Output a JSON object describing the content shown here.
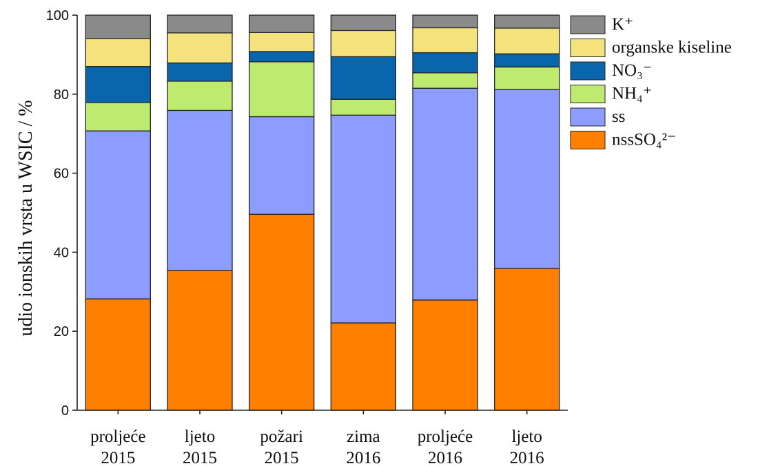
{
  "chart_data": {
    "type": "bar",
    "stacked": true,
    "ylabel": "udio ionskih vrsta u WSIC / %",
    "ylim": [
      0,
      100
    ],
    "yticks": [
      0,
      20,
      40,
      60,
      80,
      100
    ],
    "grid": false,
    "legend_position": "top-right",
    "categories": [
      [
        "proljeće",
        "2015"
      ],
      [
        "ljeto",
        "2015"
      ],
      [
        "požari",
        "2015"
      ],
      [
        "zima",
        "2016"
      ],
      [
        "proljeće",
        "2016"
      ],
      [
        "ljeto",
        "2016"
      ]
    ],
    "series": [
      {
        "name": "nssSO₄²⁻",
        "key": "nssso4",
        "color": "#ff8000",
        "values": [
          28.2,
          35.4,
          49.6,
          22.1,
          27.9,
          35.9
        ]
      },
      {
        "name": "ss",
        "key": "ss",
        "color": "#8c9cff",
        "values": [
          42.5,
          40.5,
          24.7,
          52.6,
          53.6,
          45.3
        ]
      },
      {
        "name": "NH₄⁺",
        "key": "nh4",
        "color": "#bfea70",
        "values": [
          7.2,
          7.4,
          13.9,
          4.0,
          3.9,
          5.7
        ]
      },
      {
        "name": "NO₃⁻",
        "key": "no3",
        "color": "#0966ad",
        "values": [
          9.1,
          4.6,
          2.6,
          10.8,
          5.1,
          3.3
        ]
      },
      {
        "name": "organske kiseline",
        "key": "organic",
        "color": "#f4e37d",
        "values": [
          7.1,
          7.6,
          4.8,
          6.6,
          6.3,
          6.5
        ]
      },
      {
        "name": "K⁺",
        "key": "k",
        "color": "#8a8a8a",
        "values": [
          5.9,
          4.5,
          4.4,
          3.9,
          3.2,
          3.3
        ]
      }
    ]
  }
}
